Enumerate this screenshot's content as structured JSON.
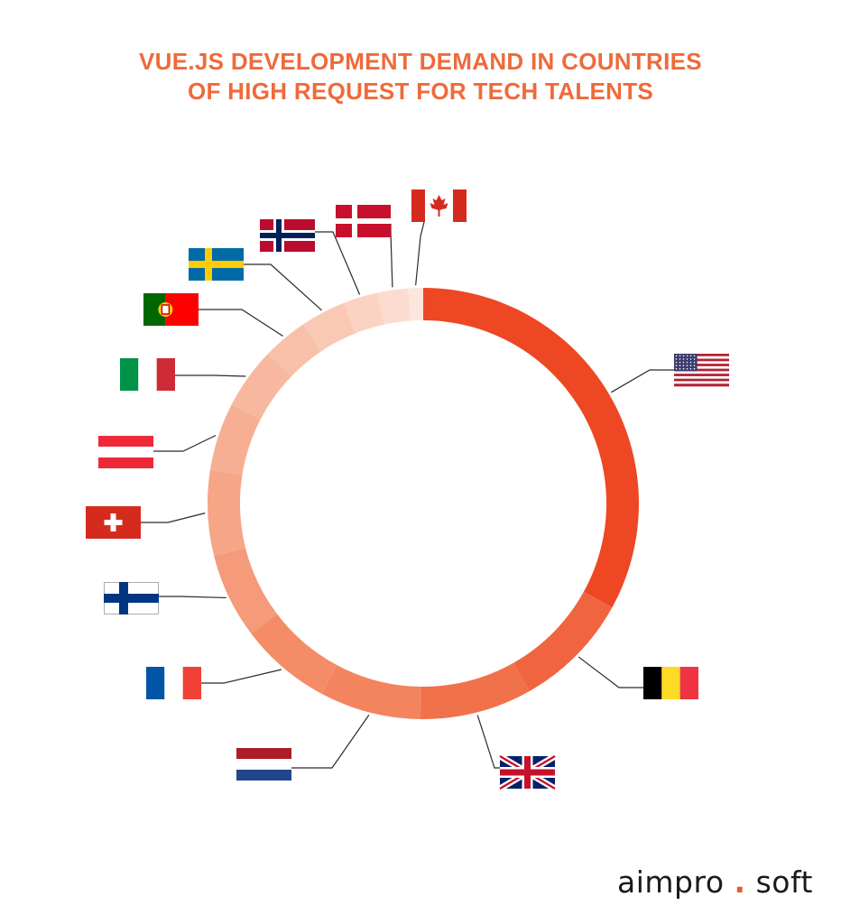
{
  "colors": {
    "title": "#ef6a3a",
    "leader": "#2b2b2b",
    "logo_dot": "#ef5a2a"
  },
  "logo": {
    "part1": "aimpro",
    "dot": ".",
    "part2": "soft"
  },
  "chart_data": {
    "type": "pie",
    "style": "donut",
    "title_lines": [
      "VUE.JS DEVELOPMENT DEMAND IN COUNTRIES",
      "OF HIGH REQUEST FOR TECH TALENTS"
    ],
    "legend": "none",
    "slices": [
      {
        "flag": "usa-flag",
        "value": 33.0,
        "color": "#ee4724"
      },
      {
        "flag": "belgium-flag",
        "value": 8.8,
        "color": "#f0653f"
      },
      {
        "flag": "uk-flag",
        "value": 8.4,
        "color": "#f1714a"
      },
      {
        "flag": "netherlands-flag",
        "value": 7.6,
        "color": "#f3845e"
      },
      {
        "flag": "france-flag",
        "value": 6.9,
        "color": "#f48c68"
      },
      {
        "flag": "finland-flag",
        "value": 6.4,
        "color": "#f59a7a"
      },
      {
        "flag": "switzerland-flag",
        "value": 6.4,
        "color": "#f6a586"
      },
      {
        "flag": "austria-flag",
        "value": 5.1,
        "color": "#f7af93"
      },
      {
        "flag": "italy-flag",
        "value": 4.6,
        "color": "#f8b89f"
      },
      {
        "flag": "portugal-flag",
        "value": 3.4,
        "color": "#f9c0a9"
      },
      {
        "flag": "sweden-flag",
        "value": 3.4,
        "color": "#fac9b6"
      },
      {
        "flag": "norway-flag",
        "value": 2.6,
        "color": "#fbd3c3"
      },
      {
        "flag": "denmark-flag",
        "value": 2.3,
        "color": "#fcdcd0"
      },
      {
        "flag": "canada-flag",
        "value": 1.1,
        "color": "#fde6dd"
      }
    ]
  }
}
